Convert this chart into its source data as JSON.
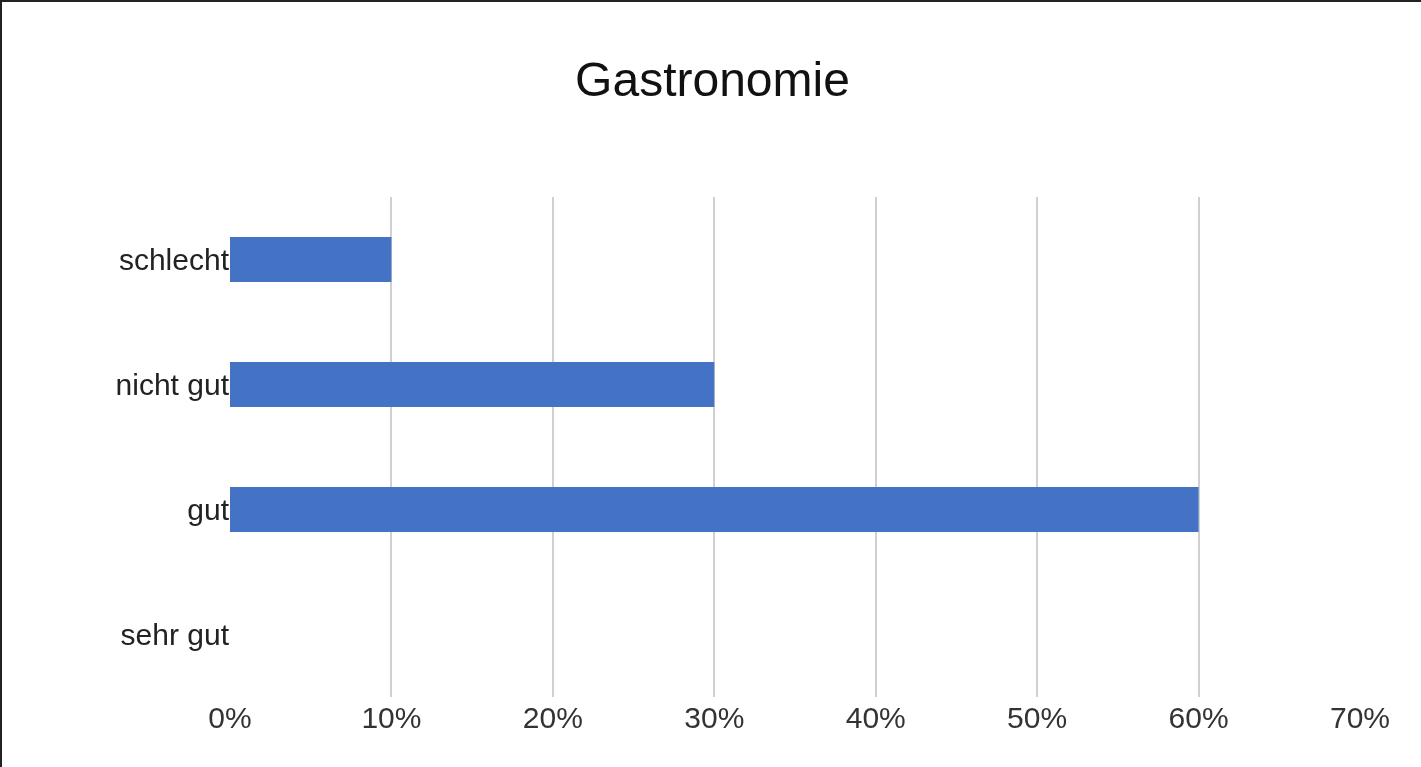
{
  "chart_data": {
    "type": "bar",
    "orientation": "horizontal",
    "title": "Gastronomie",
    "categories": [
      "schlecht",
      "nicht gut",
      "gut",
      "sehr gut"
    ],
    "values": [
      10,
      30,
      60,
      0
    ],
    "color": "#4472c4",
    "xlim": [
      0,
      70
    ],
    "xticks": [
      {
        "value": 0,
        "label": "0%"
      },
      {
        "value": 10,
        "label": "10%"
      },
      {
        "value": 20,
        "label": "20%"
      },
      {
        "value": 30,
        "label": "30%"
      },
      {
        "value": 40,
        "label": "40%"
      },
      {
        "value": 50,
        "label": "50%"
      },
      {
        "value": 60,
        "label": "60%"
      },
      {
        "value": 70,
        "label": "70%"
      }
    ],
    "grid": "x"
  }
}
